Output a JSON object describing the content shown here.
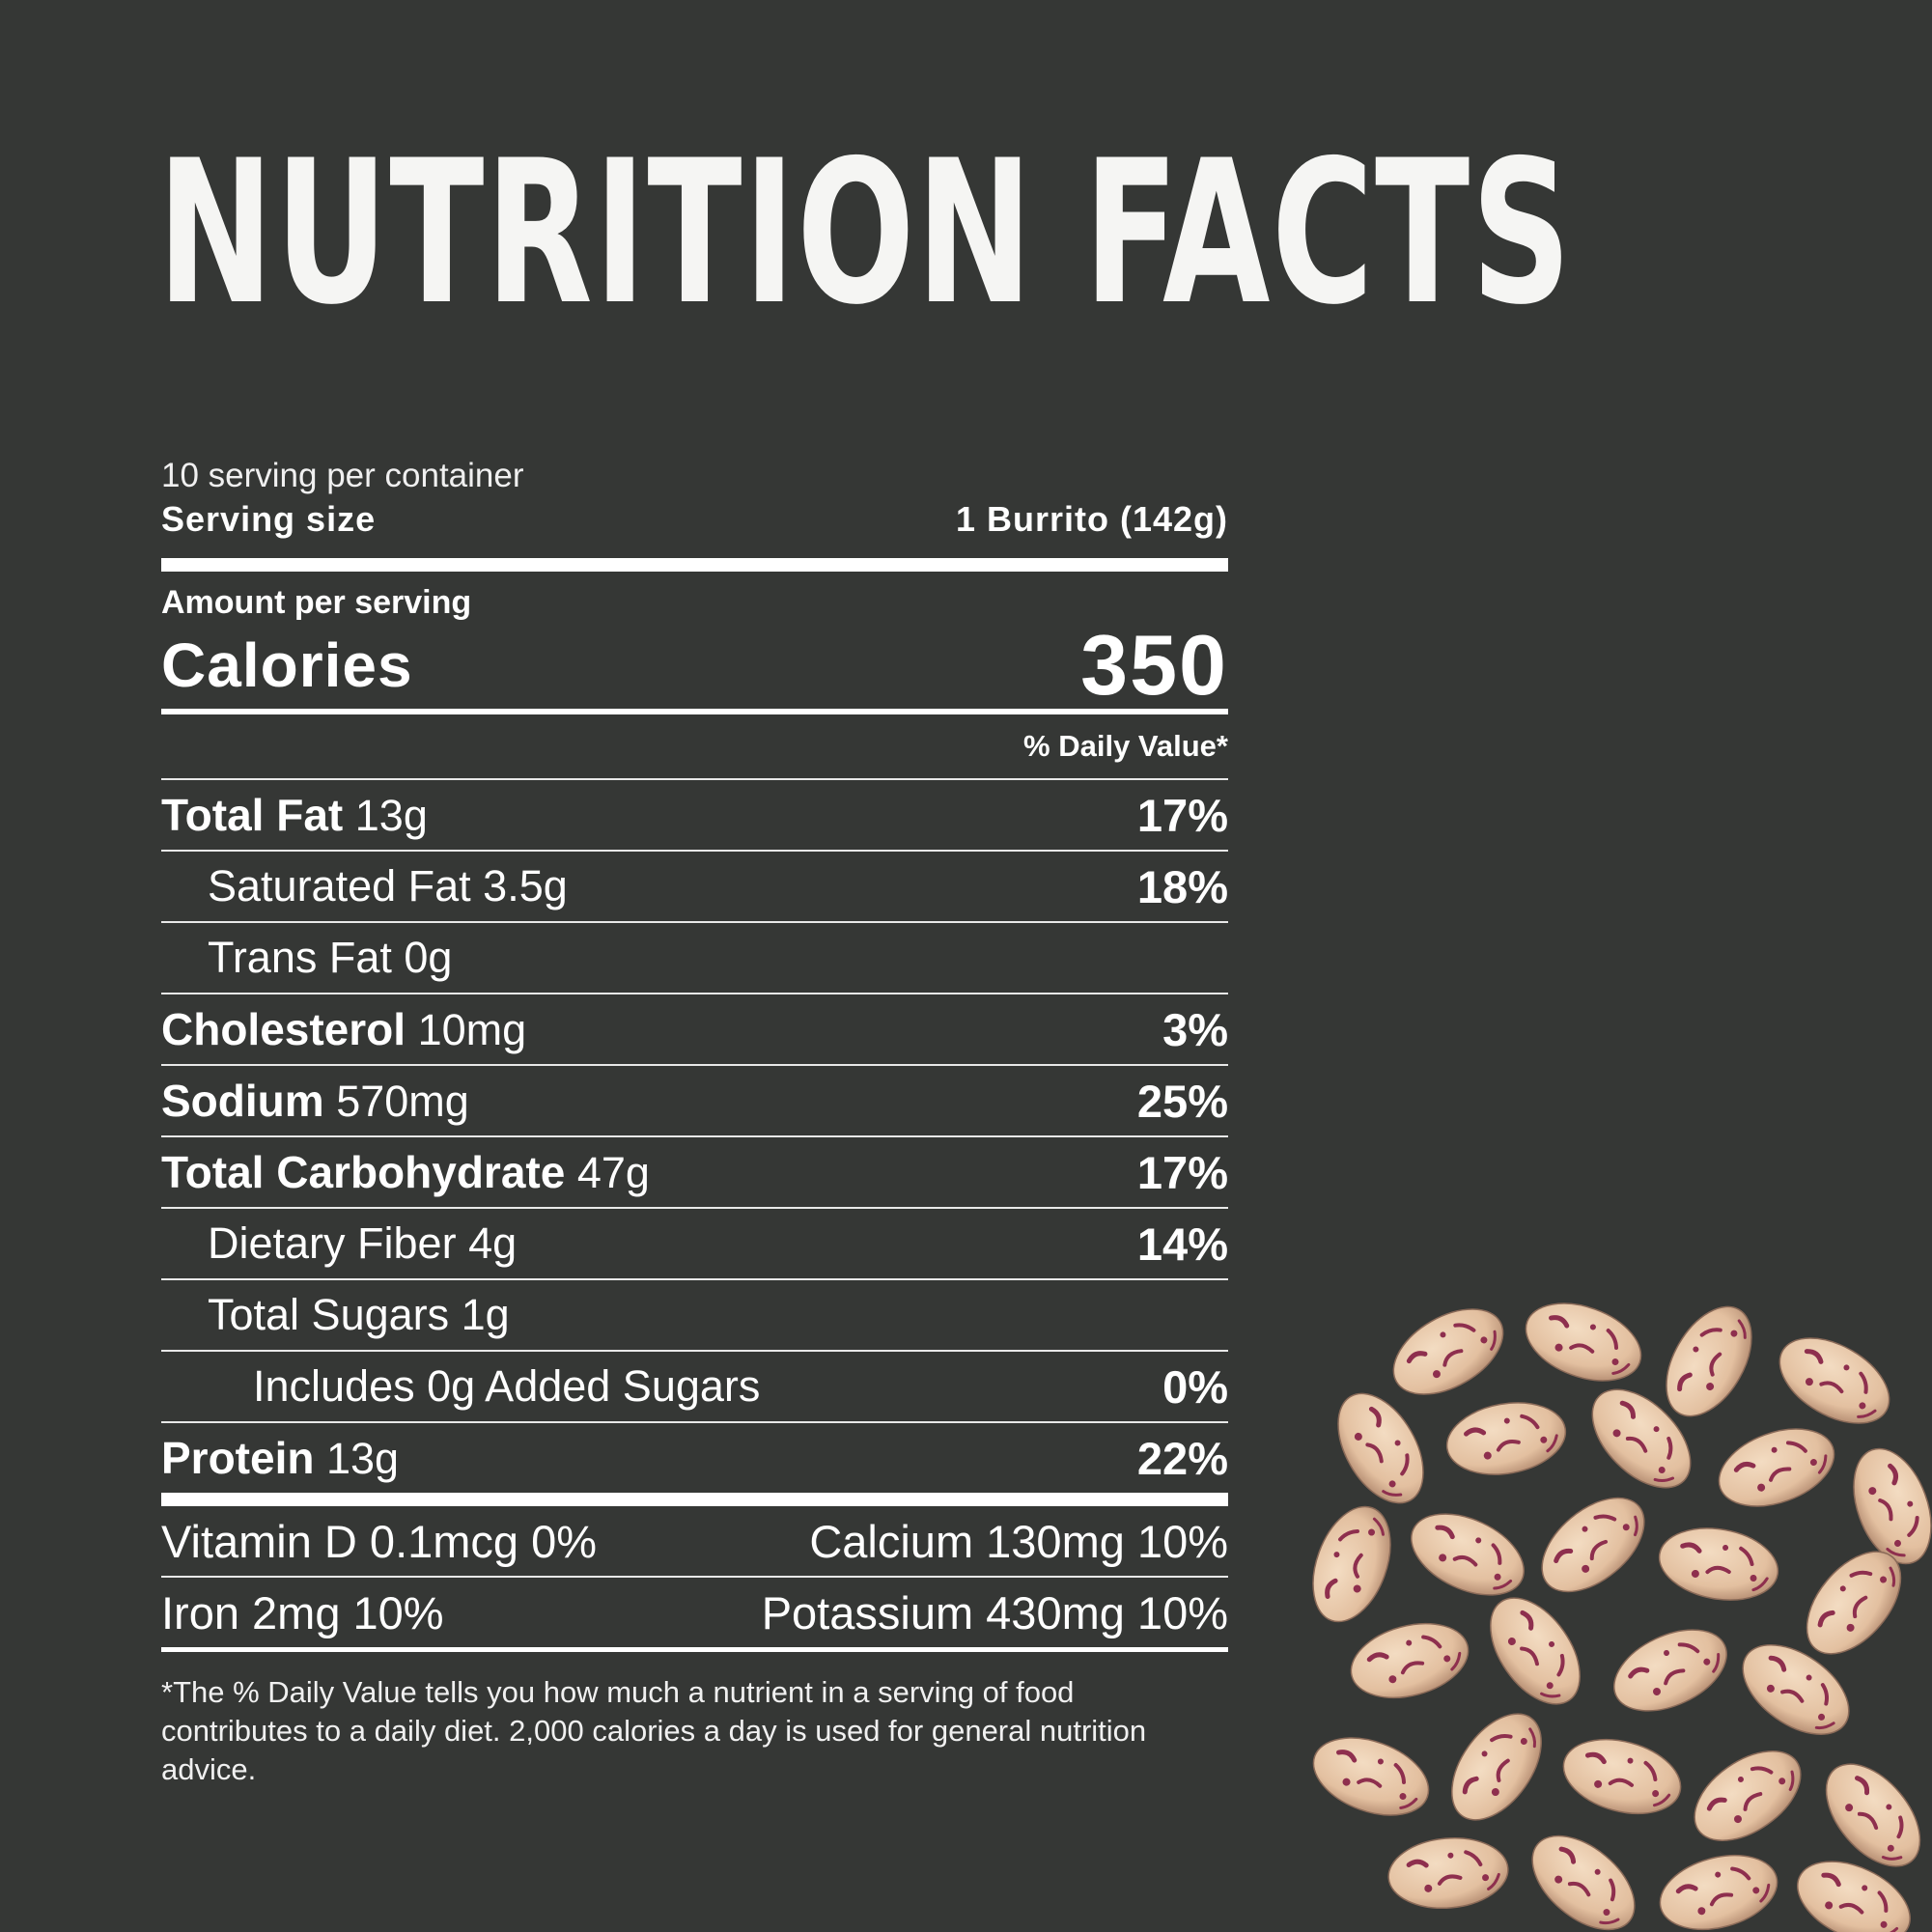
{
  "title": "NUTRITION FACTS",
  "servings_per_container": "10 serving per container",
  "serving_size": {
    "label": "Serving size",
    "value": "1 Burrito (142g)"
  },
  "amount_per_serving": "Amount per serving",
  "calories": {
    "label": "Calories",
    "value": "350"
  },
  "daily_value_header": "% Daily Value*",
  "nutrients": [
    {
      "name": "Total Fat",
      "amount": "13g",
      "dv": "17%"
    },
    {
      "name": "Saturated Fat 3.5g",
      "amount": "",
      "dv": "18%"
    },
    {
      "name": "Trans Fat 0g",
      "amount": "",
      "dv": ""
    },
    {
      "name": "Cholesterol",
      "amount": "10mg",
      "dv": "3%"
    },
    {
      "name": "Sodium",
      "amount": "570mg",
      "dv": "25%"
    },
    {
      "name": "Total Carbohydrate",
      "amount": "47g",
      "dv": "17%"
    },
    {
      "name": "Dietary Fiber 4g",
      "amount": "",
      "dv": "14%"
    },
    {
      "name": "Total Sugars 1g",
      "amount": "",
      "dv": ""
    },
    {
      "name": "Includes 0g Added Sugars",
      "amount": "",
      "dv": "0%"
    },
    {
      "name": "Protein",
      "amount": "13g",
      "dv": "22%"
    }
  ],
  "vitamins": [
    {
      "left": "Vitamin D 0.1mcg 0%",
      "right": "Calcium 130mg 10%"
    },
    {
      "left": "Iron 2mg 10%",
      "right": "Potassium 430mg 10%"
    }
  ],
  "footnote": "*The % Daily Value tells you how much a nutrient in a serving of food contributes to a daily diet. 2,000 calories a day is used for general nutrition advice.",
  "colors": {
    "background": "#353735",
    "text": "#ffffff",
    "bean_base": "#e8c9a8",
    "bean_speckle": "#8e2f4e"
  },
  "image": {
    "icon": "pinto-beans-illustration"
  }
}
